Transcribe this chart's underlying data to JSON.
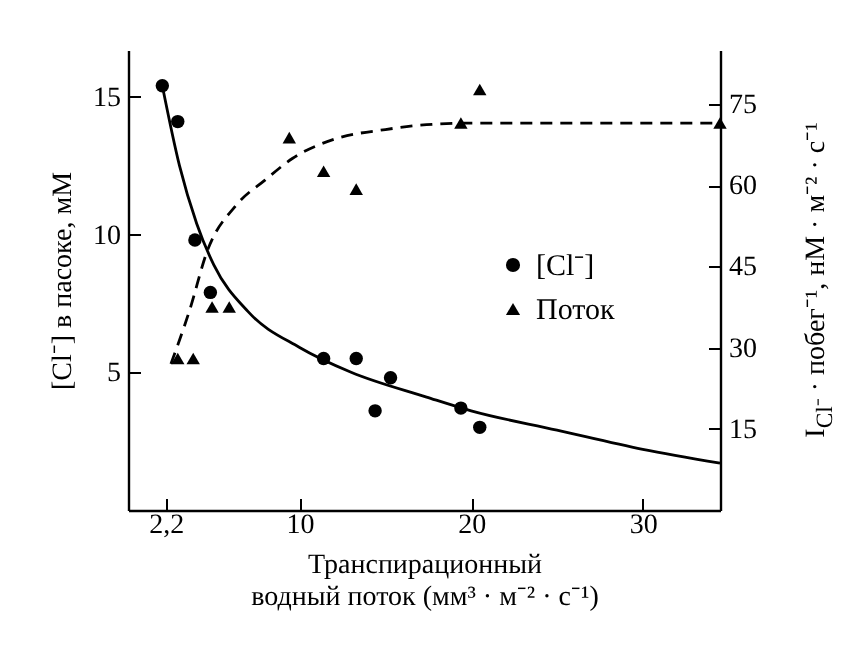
{
  "chart_data": {
    "type": "scatter",
    "xlabel": "Транспирационный\nводный поток (мм³ · м⁻² · с⁻¹)",
    "ylabel": "[Cl⁻] в пасоке,  мМ",
    "y2label": "I$_{Cl⁻}$ · побег⁻¹, нМ · м⁻² · с⁻¹",
    "xlim": [
      0,
      34.5
    ],
    "xticks": [
      {
        "value": 2.2,
        "label": "2,2"
      },
      10,
      20,
      30
    ],
    "ylim": [
      0,
      16.7
    ],
    "yticks": [
      5,
      10,
      15
    ],
    "y2lim": [
      0,
      85
    ],
    "y2ticks": [
      15,
      30,
      45,
      60,
      75
    ],
    "grid": false,
    "legend": "right",
    "series": [
      {
        "name": "[Cl⁻]",
        "type": "scatter",
        "marker": "circle",
        "color": "#000000",
        "x": [
          2,
          2.9,
          3.9,
          4.8,
          11.4,
          13.3,
          14.4,
          15.3,
          19.4,
          20.5
        ],
        "values": [
          15.4,
          14.1,
          9.8,
          7.9,
          5.5,
          5.5,
          3.6,
          4.8,
          3.7,
          3.0
        ]
      },
      {
        "name": "Поток",
        "type": "scatter",
        "marker": "triangle",
        "color": "#000000",
        "axis": "y2",
        "x": [
          2.9,
          3.8,
          4.9,
          5.9,
          9.4,
          11.4,
          13.3,
          19.4,
          20.5,
          34.5
        ],
        "values": [
          28,
          28,
          37.5,
          37.5,
          68.8,
          62.6,
          59.3,
          71.5,
          77.7,
          71.5
        ]
      },
      {
        "type": "line",
        "line_style": "solid",
        "color": "#000000",
        "x": [
          2,
          3,
          4,
          5,
          7,
          10,
          13,
          17.4,
          20,
          25,
          30,
          34.5
        ],
        "values": [
          15.4,
          12.5,
          10.4,
          8.9,
          7.2,
          5.9,
          5.0,
          4.1,
          3.6,
          2.9,
          2.2,
          1.7
        ]
      },
      {
        "type": "line",
        "line_style": "dashed",
        "color": "#000000",
        "axis": "y2",
        "x": [
          2.5,
          3.6,
          4.6,
          6.3,
          8,
          9.6,
          12,
          15,
          17.4,
          20,
          34.5
        ],
        "values": [
          27,
          37,
          47.7,
          56.3,
          61,
          65,
          68.5,
          70.3,
          71.2,
          71.5,
          71.5
        ]
      }
    ]
  }
}
